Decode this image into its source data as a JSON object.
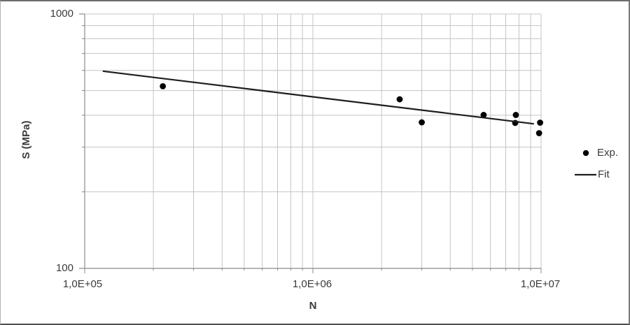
{
  "colors": {
    "background": "#ffffff",
    "frame": "#6d6d6d",
    "text": "#3a3a3a",
    "gridline": "#c4c4c4",
    "axis": "#8a8a8a",
    "point": "#000000",
    "fit_line": "#1d1d1d"
  },
  "chart_data": {
    "type": "scatter",
    "title": "",
    "xlabel": "N",
    "ylabel": "S (MPa)",
    "x_scale": "log",
    "y_scale": "log",
    "xlim": [
      100000,
      10000000
    ],
    "ylim": [
      100,
      1000
    ],
    "x_ticks": [
      {
        "value": 100000,
        "label": "1,0E+05"
      },
      {
        "value": 1000000,
        "label": "1,0E+06"
      },
      {
        "value": 10000000,
        "label": "1,0E+07"
      }
    ],
    "y_ticks": [
      {
        "value": 100,
        "label": "100"
      },
      {
        "value": 1000,
        "label": "1000"
      }
    ],
    "grid": {
      "major": true,
      "minor": true
    },
    "legend": {
      "position": "right",
      "entries": [
        {
          "label": "Exp.",
          "marker": "dot"
        },
        {
          "label": "Fit",
          "marker": "line"
        }
      ]
    },
    "series": [
      {
        "name": "Exp.",
        "type": "scatter",
        "marker": "circle",
        "points": [
          [
            220000,
            520
          ],
          [
            2400000,
            462
          ],
          [
            3000000,
            375
          ],
          [
            5600000,
            401
          ],
          [
            7750000,
            401
          ],
          [
            7700000,
            373
          ],
          [
            9900000,
            374
          ],
          [
            9800000,
            340
          ]
        ]
      },
      {
        "name": "Fit",
        "type": "line",
        "points": [
          [
            120000,
            596
          ],
          [
            9300000,
            370
          ]
        ]
      }
    ]
  }
}
